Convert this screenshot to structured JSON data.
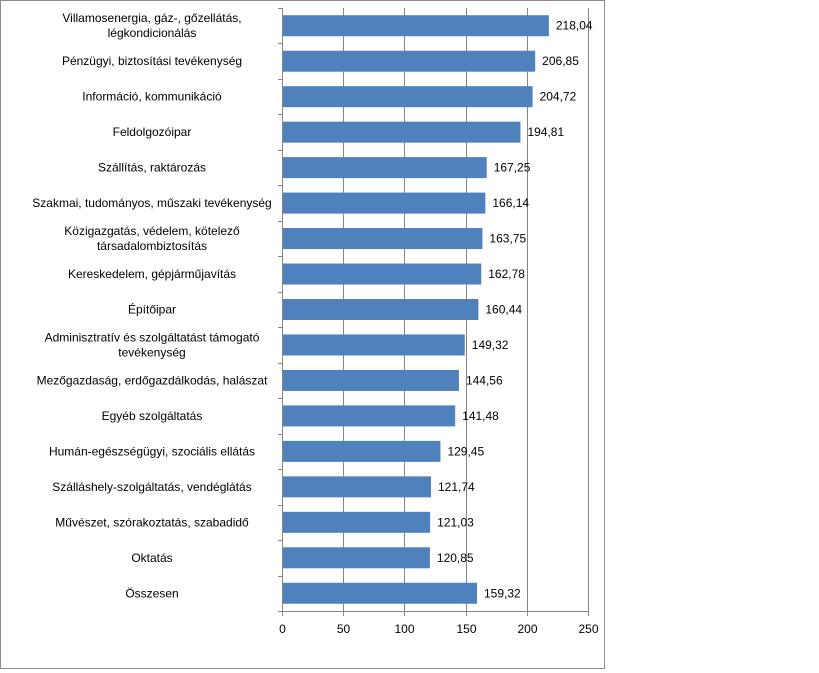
{
  "chart_data": {
    "type": "bar",
    "orientation": "horizontal",
    "categories": [
      [
        "Villamosenergia, gáz-, gőzellátás,",
        "légkondicionálás"
      ],
      [
        "Pénzügyi, biztosítási tevékenység"
      ],
      [
        "Információ, kommunikáció"
      ],
      [
        "Feldolgozóipar"
      ],
      [
        "Szállítás, raktározás"
      ],
      [
        "Szakmai, tudományos, műszaki tevékenység"
      ],
      [
        "Közigazgatás, védelem, kötelező",
        "társadalombiztosítás"
      ],
      [
        "Kereskedelem, gépjárműjavítás"
      ],
      [
        "Építőipar"
      ],
      [
        "Adminisztratív és szolgáltatást támogató",
        "tevékenység"
      ],
      [
        "Mezőgazdaság, erdőgazdálkodás, halászat"
      ],
      [
        "Egyéb szolgáltatás"
      ],
      [
        "Humán-egészségügyi, szociális ellátás"
      ],
      [
        "Szálláshely-szolgáltatás, vendéglátás"
      ],
      [
        "Művészet, szórakoztatás, szabadidő"
      ],
      [
        "Oktatás"
      ],
      [
        "Összesen"
      ]
    ],
    "values": [
      218.04,
      206.85,
      204.72,
      194.81,
      167.25,
      166.14,
      163.75,
      162.78,
      160.44,
      149.32,
      144.56,
      141.48,
      129.45,
      121.74,
      121.03,
      120.85,
      159.32
    ],
    "value_labels": [
      "218,04",
      "206,85",
      "204,72",
      "194,81",
      "167,25",
      "166,14",
      "163,75",
      "162,78",
      "160,44",
      "149,32",
      "144,56",
      "141,48",
      "129,45",
      "121,74",
      "121,03",
      "120,85",
      "159,32"
    ],
    "xlim": [
      0,
      250
    ],
    "x_ticks": [
      "0",
      "50",
      "100",
      "150",
      "200",
      "250"
    ],
    "x_tick_values": [
      0,
      50,
      100,
      150,
      200,
      250
    ],
    "grid": "vertical",
    "legend": "none",
    "title": "",
    "xlabel": "",
    "ylabel": "",
    "colors": {
      "bar": "#4f81bd",
      "gridline": "#868686",
      "axis": "#868686",
      "frame": "#8c8c8c"
    }
  }
}
